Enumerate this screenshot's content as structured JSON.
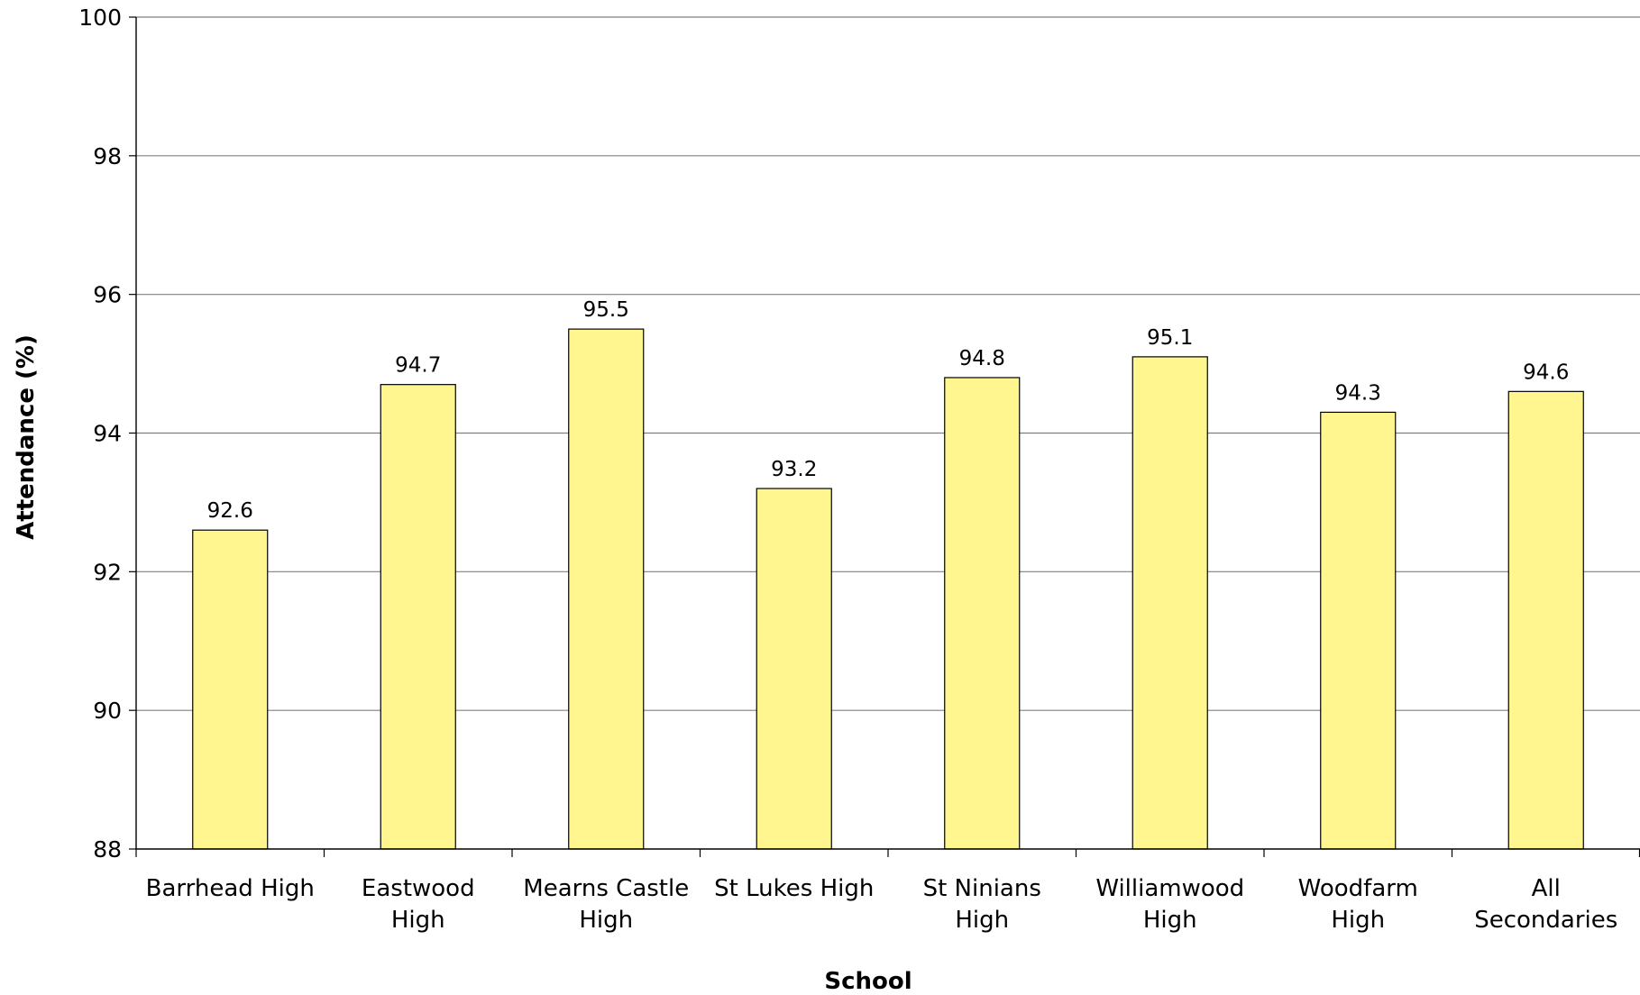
{
  "chart_data": {
    "type": "bar",
    "categories": [
      [
        "Barrhead High"
      ],
      [
        "Eastwood",
        "High"
      ],
      [
        "Mearns Castle",
        "High"
      ],
      [
        "St Lukes High"
      ],
      [
        "St Ninians",
        "High"
      ],
      [
        "Williamwood",
        "High"
      ],
      [
        "Woodfarm",
        "High"
      ],
      [
        "All",
        "Secondaries"
      ]
    ],
    "values": [
      92.6,
      94.7,
      95.5,
      93.2,
      94.8,
      95.1,
      94.3,
      94.6
    ],
    "value_labels": [
      "92.6",
      "94.7",
      "95.5",
      "93.2",
      "94.8",
      "95.1",
      "94.3",
      "94.6"
    ],
    "xlabel": "School",
    "ylabel": "Attendance (%)",
    "ylim": [
      88,
      100
    ],
    "yticks": [
      88,
      90,
      92,
      94,
      96,
      98,
      100
    ],
    "grid": true,
    "bar_color": "#FFF68F",
    "bar_edge_color": "#000000",
    "grid_color": "#808080"
  }
}
